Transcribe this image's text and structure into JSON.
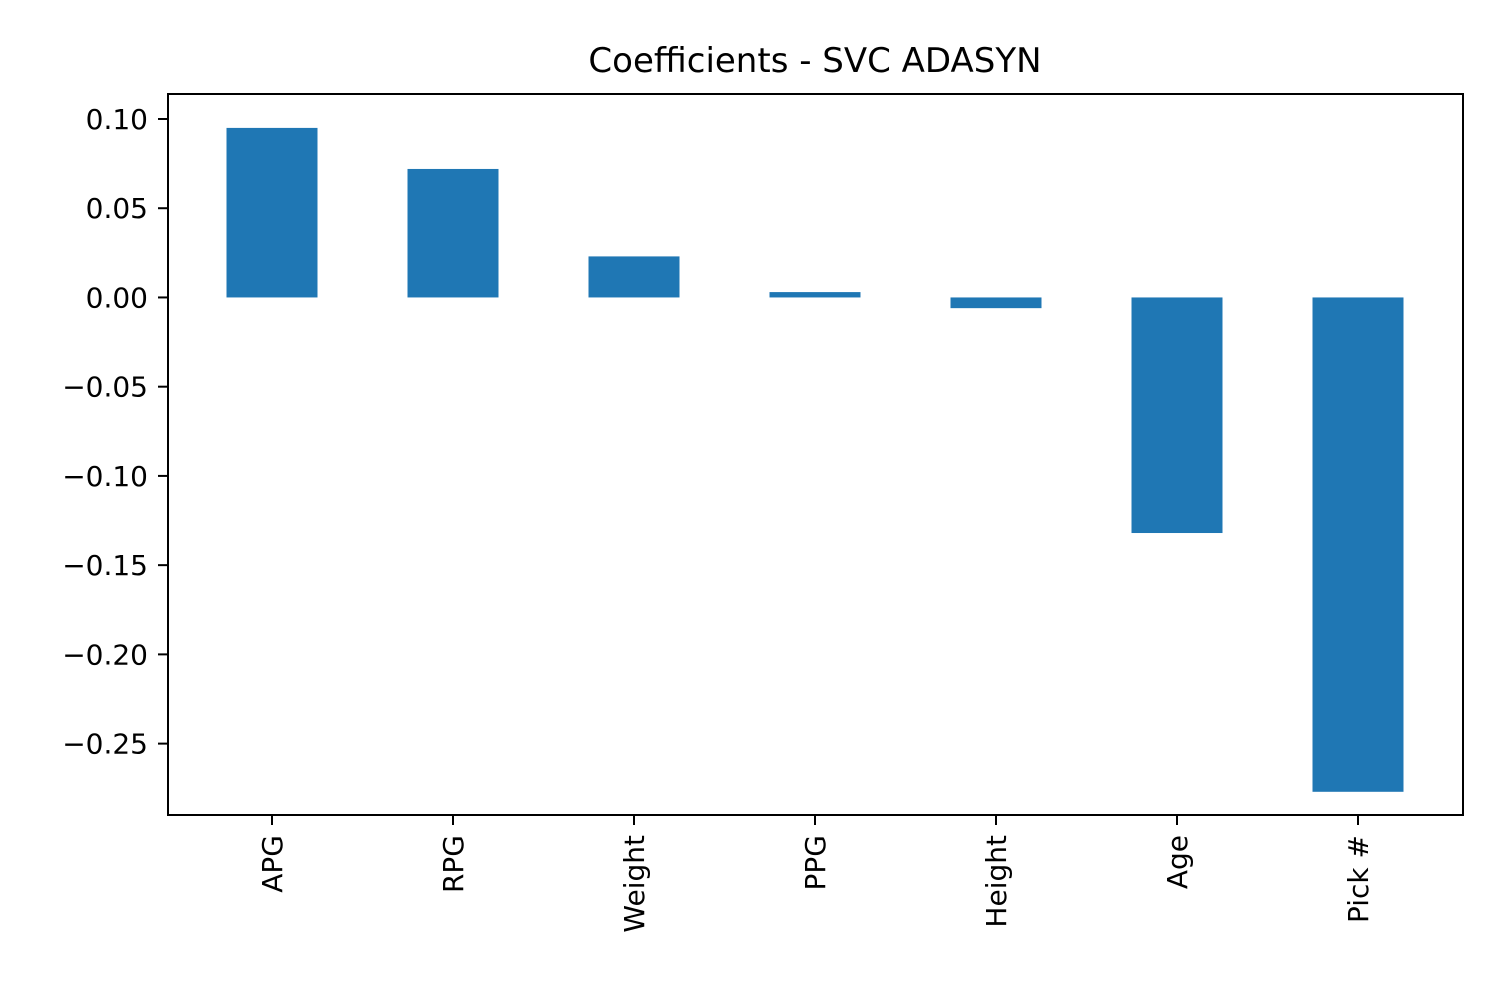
{
  "chart_data": {
    "type": "bar",
    "title": "Coefficients - SVC ADASYN",
    "xlabel": "",
    "ylabel": "",
    "categories": [
      "APG",
      "RPG",
      "Weight",
      "PPG",
      "Height",
      "Age",
      "Pick #"
    ],
    "values": [
      0.095,
      0.072,
      0.023,
      0.003,
      -0.006,
      -0.132,
      -0.277
    ],
    "ylim": [
      -0.29,
      0.114
    ],
    "yticks": [
      0.1,
      0.05,
      0.0,
      -0.05,
      -0.1,
      -0.15,
      -0.2,
      -0.25
    ],
    "ytick_labels": [
      "0.10",
      "0.05",
      "0.00",
      "−0.05",
      "−0.10",
      "−0.15",
      "−0.20",
      "−0.25"
    ],
    "grid": false,
    "legend": "none",
    "bar_color": "#1f77b4"
  }
}
